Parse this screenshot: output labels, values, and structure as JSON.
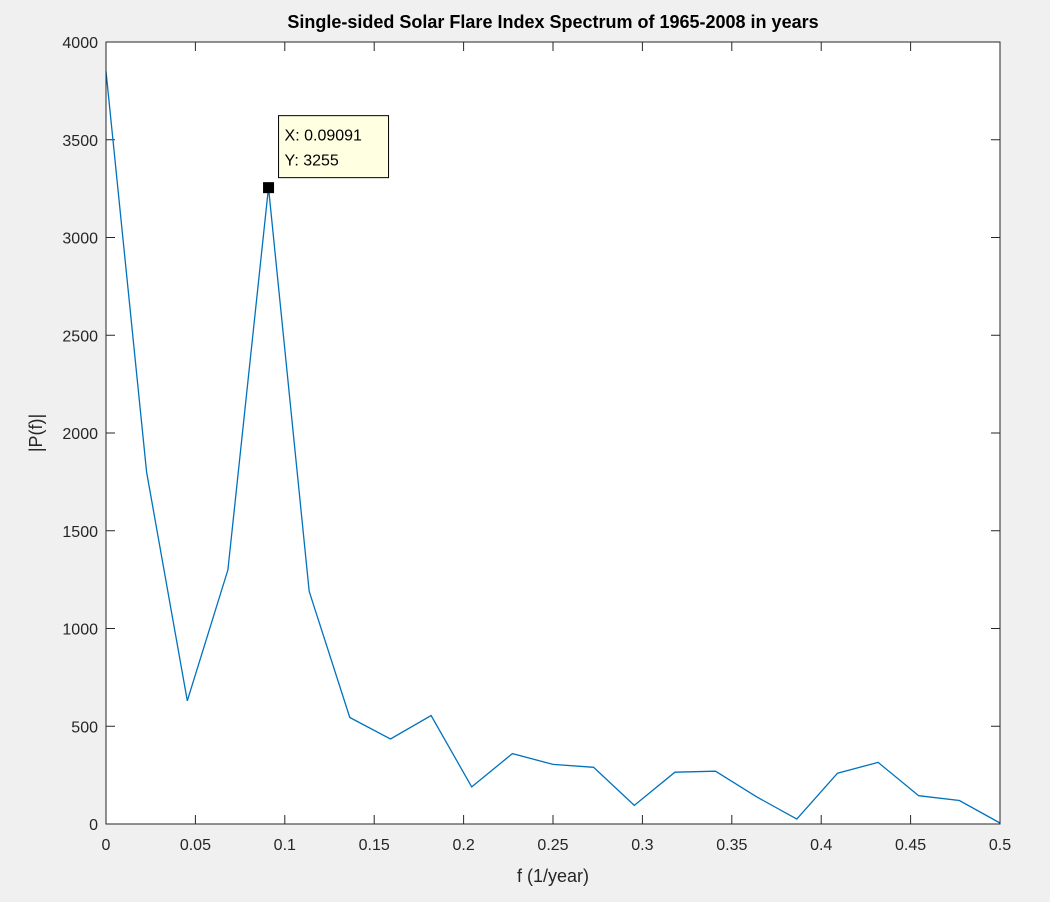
{
  "chart_data": {
    "type": "line",
    "title": "Single-sided Solar Flare Index Spectrum of 1965-2008 in years",
    "xlabel": "f (1/year)",
    "ylabel": "|P(f)|",
    "xlim": [
      0,
      0.5
    ],
    "ylim": [
      0,
      4000
    ],
    "xticks": [
      0,
      0.05,
      0.1,
      0.15,
      0.2,
      0.25,
      0.3,
      0.35,
      0.4,
      0.45,
      0.5
    ],
    "xtick_labels": [
      "0",
      "0.05",
      "0.1",
      "0.15",
      "0.2",
      "0.25",
      "0.3",
      "0.35",
      "0.4",
      "0.45",
      "0.5"
    ],
    "yticks": [
      0,
      500,
      1000,
      1500,
      2000,
      2500,
      3000,
      3500,
      4000
    ],
    "ytick_labels": [
      "0",
      "500",
      "1000",
      "1500",
      "2000",
      "2500",
      "3000",
      "3500",
      "4000"
    ],
    "grid": false,
    "series": [
      {
        "color": "#0072BD",
        "x": [
          0,
          0.02273,
          0.04545,
          0.06818,
          0.09091,
          0.11364,
          0.13636,
          0.15909,
          0.18182,
          0.20455,
          0.22727,
          0.25,
          0.27273,
          0.29545,
          0.31818,
          0.34091,
          0.36364,
          0.38636,
          0.40909,
          0.43182,
          0.45455,
          0.47727,
          0.5
        ],
        "y": [
          3850,
          1800,
          630,
          1300,
          3255,
          1190,
          545,
          435,
          555,
          190,
          360,
          305,
          290,
          95,
          265,
          270,
          140,
          25,
          260,
          315,
          145,
          120,
          5
        ]
      }
    ],
    "datatip": {
      "x": 0.09091,
      "y": 3255,
      "x_label": "X: 0.09091",
      "y_label": "Y: 3255"
    }
  }
}
